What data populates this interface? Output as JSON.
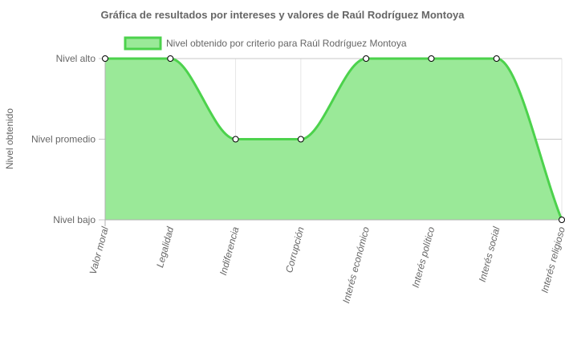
{
  "chart_data": {
    "type": "area",
    "title": "Gráfica de resultados por intereses y valores de Raúl Rodríguez Montoya",
    "ylabel": "Nivel obtenido",
    "xlabel": "",
    "categories": [
      "Valor moral",
      "Legalidad",
      "Indiferencia",
      "Corrupción",
      "Interés económico",
      "Interés político",
      "Interés social",
      "Interés religioso"
    ],
    "y_ticks": [
      {
        "value": 3,
        "label": "Nivel alto"
      },
      {
        "value": 2,
        "label": "Nivel promedio"
      },
      {
        "value": 1,
        "label": "Nivel bajo"
      }
    ],
    "ylim": [
      1,
      3
    ],
    "series": [
      {
        "name": "Nivel obtenido por criterio para Raúl Rodríguez Montoya",
        "values": [
          3,
          3,
          2,
          2,
          3,
          3,
          3,
          1
        ]
      }
    ],
    "legend": "top-center",
    "grid": true,
    "colors": {
      "line": "#4cd24c",
      "fill": "#9ae998",
      "grid": "#e6e6e6",
      "point_fill": "#ffffff",
      "point_stroke": "#000000"
    }
  }
}
